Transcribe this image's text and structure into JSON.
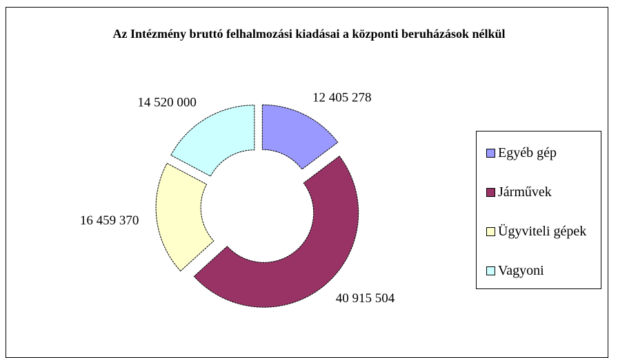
{
  "chart_data": {
    "type": "donut",
    "title": "Az Intézmény bruttó felhalmozási kiadásai a központi beruházások nélkül",
    "categories": [
      "Egyéb gép",
      "Járművek",
      "Ügyviteli gépek",
      "Vagyoni"
    ],
    "values": [
      12405278,
      40915504,
      16459370,
      14520000
    ],
    "value_labels": [
      "12 405 278",
      "40 915 504",
      "16 459 370",
      "14 520 000"
    ],
    "colors": [
      "#9999ff",
      "#993366",
      "#ffffcc",
      "#ccffff"
    ],
    "legend": "right"
  }
}
